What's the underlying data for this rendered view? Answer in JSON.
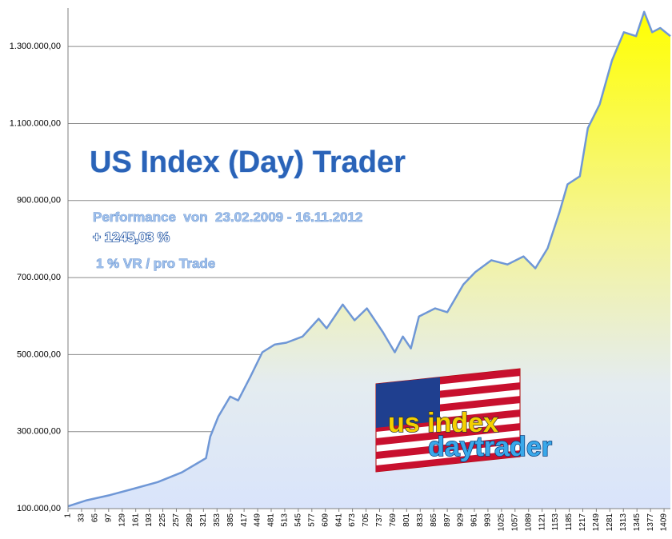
{
  "chart_data": {
    "type": "area",
    "title": "US Index (Day) Trader",
    "subtitle": "Performance  von  23.02.2009 - 16.11.2012",
    "performance": "+ 1245,03 %",
    "risk_note": "1 % VR / pro Trade",
    "color": "#6f97d6",
    "grid": true,
    "x": [
      1,
      43,
      100,
      157,
      213,
      270,
      327,
      337,
      356,
      384,
      403,
      432,
      460,
      489,
      517,
      555,
      593,
      612,
      650,
      678,
      707,
      745,
      773,
      792,
      811,
      830,
      868,
      897,
      935,
      963,
      1001,
      1039,
      1077,
      1105,
      1134,
      1162,
      1181,
      1210,
      1229,
      1257,
      1286,
      1314,
      1343,
      1362,
      1381,
      1400,
      1424
    ],
    "values": [
      106000,
      121000,
      135000,
      152000,
      169000,
      194000,
      231000,
      287000,
      339000,
      391000,
      381000,
      443000,
      506000,
      526000,
      531000,
      547000,
      593000,
      568000,
      630000,
      589000,
      620000,
      558000,
      506000,
      547000,
      516000,
      599000,
      620000,
      610000,
      682000,
      714000,
      745000,
      734000,
      755000,
      724000,
      776000,
      870000,
      942000,
      963000,
      1088000,
      1150000,
      1264000,
      1337000,
      1327000,
      1390000,
      1337000,
      1348000,
      1327000
    ],
    "xlim": [
      1,
      1424
    ],
    "xticks": [
      1,
      33,
      65,
      97,
      129,
      161,
      193,
      225,
      257,
      289,
      321,
      353,
      385,
      417,
      449,
      481,
      513,
      545,
      577,
      609,
      641,
      673,
      705,
      737,
      769,
      801,
      833,
      865,
      897,
      929,
      961,
      993,
      1025,
      1057,
      1089,
      1121,
      1153,
      1185,
      1217,
      1249,
      1281,
      1313,
      1345,
      1377,
      1409
    ],
    "ylim": [
      100000,
      1400000
    ],
    "yticks": [
      {
        "value": 100000,
        "label": "100.000,00"
      },
      {
        "value": 300000,
        "label": "300.000,00"
      },
      {
        "value": 500000,
        "label": "500.000,00"
      },
      {
        "value": 700000,
        "label": "700.000,00"
      },
      {
        "value": 900000,
        "label": "900.000,00"
      },
      {
        "value": 1100000,
        "label": "1.100.000,00"
      },
      {
        "value": 1300000,
        "label": "1.300.000,00"
      }
    ]
  },
  "logo": {
    "line1": "us index",
    "line2": "daytrader"
  }
}
